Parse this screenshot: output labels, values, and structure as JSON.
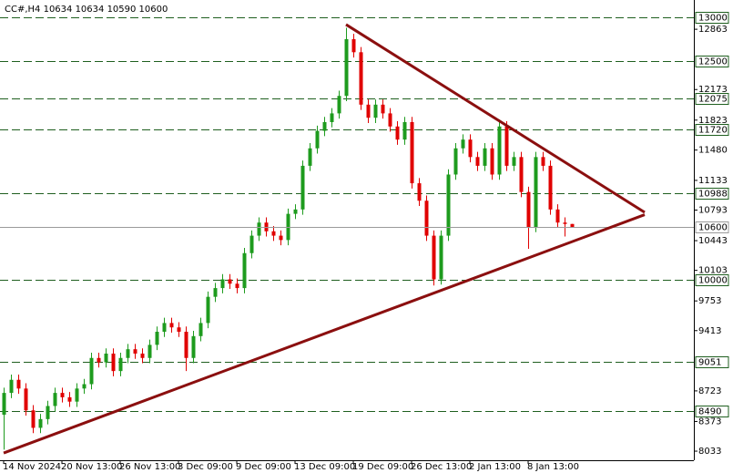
{
  "chart_data": {
    "type": "candlestick",
    "title": "CC#,H4  10634 10634 10590 10600",
    "up_color": "#1e9b1e",
    "down_color": "#e00000",
    "categories": [
      "14 Nov 2024",
      null,
      null,
      null,
      null,
      null,
      null,
      null,
      "20 Nov 13:00",
      null,
      null,
      null,
      null,
      null,
      null,
      null,
      "26 Nov 13:00",
      null,
      null,
      null,
      null,
      null,
      null,
      null,
      "3 Dec 09:00",
      null,
      null,
      null,
      null,
      null,
      null,
      null,
      "9 Dec 09:00",
      null,
      null,
      null,
      null,
      null,
      null,
      null,
      "13 Dec 09:00",
      null,
      null,
      null,
      null,
      null,
      null,
      null,
      "19 Dec 09:00",
      null,
      null,
      null,
      null,
      null,
      null,
      null,
      "26 Dec 13:00",
      null,
      null,
      null,
      null,
      null,
      null,
      null,
      "2 Jan 13:00",
      null,
      null,
      null,
      null,
      null,
      null,
      null,
      "8 Jan 13:00",
      null,
      null,
      null,
      null,
      null,
      null
    ],
    "ohlc": [
      [
        8450,
        8760,
        8050,
        8700
      ],
      [
        8700,
        8910,
        8640,
        8850
      ],
      [
        8850,
        8910,
        8690,
        8750
      ],
      [
        8750,
        8810,
        8440,
        8500
      ],
      [
        8500,
        8560,
        8240,
        8300
      ],
      [
        8300,
        8460,
        8240,
        8400
      ],
      [
        8400,
        8610,
        8340,
        8550
      ],
      [
        8550,
        8760,
        8490,
        8700
      ],
      [
        8700,
        8760,
        8590,
        8650
      ],
      [
        8650,
        8710,
        8540,
        8600
      ],
      [
        8600,
        8810,
        8540,
        8750
      ],
      [
        8750,
        8860,
        8690,
        8800
      ],
      [
        8800,
        9160,
        8740,
        9100
      ],
      [
        9100,
        9160,
        8990,
        9050
      ],
      [
        9050,
        9210,
        8990,
        9150
      ],
      [
        9150,
        9210,
        8890,
        8950
      ],
      [
        8950,
        9160,
        8890,
        9100
      ],
      [
        9100,
        9260,
        9040,
        9200
      ],
      [
        9200,
        9260,
        9090,
        9150
      ],
      [
        9150,
        9210,
        9040,
        9100
      ],
      [
        9100,
        9310,
        9040,
        9250
      ],
      [
        9250,
        9460,
        9190,
        9400
      ],
      [
        9400,
        9560,
        9340,
        9500
      ],
      [
        9500,
        9560,
        9390,
        9450
      ],
      [
        9450,
        9510,
        9340,
        9400
      ],
      [
        9400,
        9460,
        8950,
        9100
      ],
      [
        9100,
        9410,
        9040,
        9350
      ],
      [
        9350,
        9560,
        9290,
        9500
      ],
      [
        9500,
        9860,
        9440,
        9800
      ],
      [
        9800,
        9960,
        9740,
        9900
      ],
      [
        9900,
        10060,
        9840,
        10000
      ],
      [
        10000,
        10060,
        9890,
        9950
      ],
      [
        9950,
        10010,
        9840,
        9900
      ],
      [
        9900,
        10360,
        9840,
        10300
      ],
      [
        10300,
        10560,
        10240,
        10500
      ],
      [
        10500,
        10710,
        10440,
        10650
      ],
      [
        10650,
        10710,
        10490,
        10550
      ],
      [
        10550,
        10610,
        10440,
        10500
      ],
      [
        10500,
        10560,
        10390,
        10450
      ],
      [
        10450,
        10810,
        10390,
        10750
      ],
      [
        10750,
        10860,
        10690,
        10800
      ],
      [
        10800,
        11360,
        10740,
        11300
      ],
      [
        11300,
        11560,
        11240,
        11500
      ],
      [
        11500,
        11760,
        11440,
        11700
      ],
      [
        11700,
        11860,
        11640,
        11800
      ],
      [
        11800,
        11960,
        11740,
        11900
      ],
      [
        11900,
        12160,
        11840,
        12100
      ],
      [
        12100,
        12880,
        12040,
        12750
      ],
      [
        12750,
        12810,
        12540,
        12600
      ],
      [
        12600,
        12660,
        11940,
        12000
      ],
      [
        12000,
        12060,
        11790,
        11850
      ],
      [
        11850,
        12060,
        11790,
        12000
      ],
      [
        12000,
        12060,
        11840,
        11900
      ],
      [
        11900,
        11960,
        11690,
        11750
      ],
      [
        11750,
        11810,
        11540,
        11600
      ],
      [
        11600,
        11860,
        11540,
        11800
      ],
      [
        11800,
        11860,
        11040,
        11100
      ],
      [
        11100,
        11160,
        10840,
        10900
      ],
      [
        10900,
        10960,
        10440,
        10500
      ],
      [
        10500,
        10560,
        9930,
        10000
      ],
      [
        10000,
        10560,
        9940,
        10500
      ],
      [
        10500,
        11260,
        10440,
        11200
      ],
      [
        11200,
        11560,
        11140,
        11500
      ],
      [
        11500,
        11660,
        11440,
        11600
      ],
      [
        11600,
        11660,
        11340,
        11400
      ],
      [
        11400,
        11460,
        11240,
        11300
      ],
      [
        11300,
        11560,
        11240,
        11500
      ],
      [
        11500,
        11560,
        11140,
        11200
      ],
      [
        11200,
        11830,
        11140,
        11750
      ],
      [
        11750,
        11810,
        11240,
        11300
      ],
      [
        11300,
        11460,
        11240,
        11400
      ],
      [
        11400,
        11460,
        10940,
        11000
      ],
      [
        11000,
        11060,
        10350,
        10600
      ],
      [
        10600,
        11460,
        10540,
        11400
      ],
      [
        11400,
        11460,
        11240,
        11300
      ],
      [
        11300,
        11360,
        10740,
        10800
      ],
      [
        10800,
        10860,
        10590,
        10650
      ],
      [
        10650,
        10710,
        10490,
        10634
      ],
      [
        10634,
        10634,
        10590,
        10600
      ]
    ],
    "ylim": [
      7929,
      13198
    ],
    "yticks": [
      12863,
      12173,
      11823,
      11480,
      11133,
      10793,
      10443,
      10103,
      9753,
      9413,
      8723,
      8373,
      8033
    ],
    "levels": [
      13000,
      12500,
      12075,
      11720,
      10988,
      10000,
      9051,
      8490
    ],
    "level_color": "#1f5f1f",
    "trendlines": [
      {
        "from": [
          47,
          12917
        ],
        "to": [
          88,
          10767
        ]
      },
      {
        "from": [
          0,
          8012
        ],
        "to": [
          88,
          10740
        ]
      }
    ],
    "trendline_color": "#8b0f0f"
  }
}
